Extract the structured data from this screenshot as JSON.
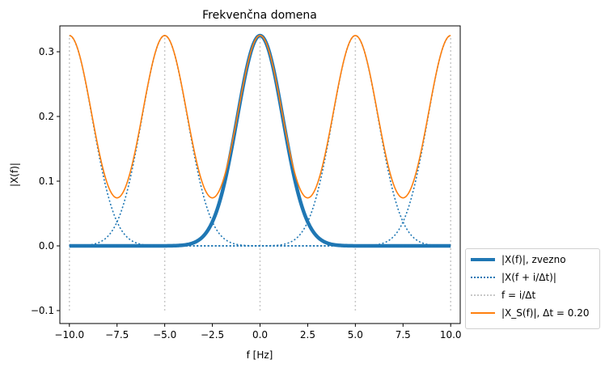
{
  "chart_data": {
    "type": "line",
    "title": "Frekvenčna domena",
    "xlabel": "f [Hz]",
    "ylabel": "|X(f)|",
    "xlim": [
      -10.5,
      10.5
    ],
    "ylim": [
      -0.12,
      0.34
    ],
    "xticks": [
      "−10.0",
      "−7.5",
      "−5.0",
      "−2.5",
      "0.0",
      "2.5",
      "5.0",
      "7.5",
      "10.0"
    ],
    "xtick_values": [
      -10,
      -7.5,
      -5,
      -2.5,
      0,
      2.5,
      5,
      7.5,
      10
    ],
    "yticks": [
      "−0.1",
      "0.0",
      "0.1",
      "0.2",
      "0.3"
    ],
    "ytick_values": [
      -0.1,
      0.0,
      0.1,
      0.2,
      0.3
    ],
    "grid": false,
    "legend_position": "outside-lower-right",
    "sampling": {
      "delta_t": 0.2,
      "fs": 5.0,
      "peak": 0.325,
      "sigma": 1.2,
      "x_range": [
        -10,
        10
      ]
    },
    "vlines_x": [
      -10,
      -5,
      0,
      5,
      10
    ],
    "series": [
      {
        "name": "|X(f)|, zvezno",
        "style": "thick-solid",
        "color": "#1f77b4"
      },
      {
        "name": "|X(f + i/Δt)|",
        "style": "dotted",
        "color": "#1f77b4",
        "shifts": [
          -10,
          -5,
          5,
          10
        ]
      },
      {
        "name": "f = i/Δt",
        "style": "dotted-vline",
        "color": "#c8c8c8"
      },
      {
        "name": "|X_S(f)|, Δt = 0.20",
        "style": "solid",
        "color": "#ff7f0e"
      }
    ]
  }
}
